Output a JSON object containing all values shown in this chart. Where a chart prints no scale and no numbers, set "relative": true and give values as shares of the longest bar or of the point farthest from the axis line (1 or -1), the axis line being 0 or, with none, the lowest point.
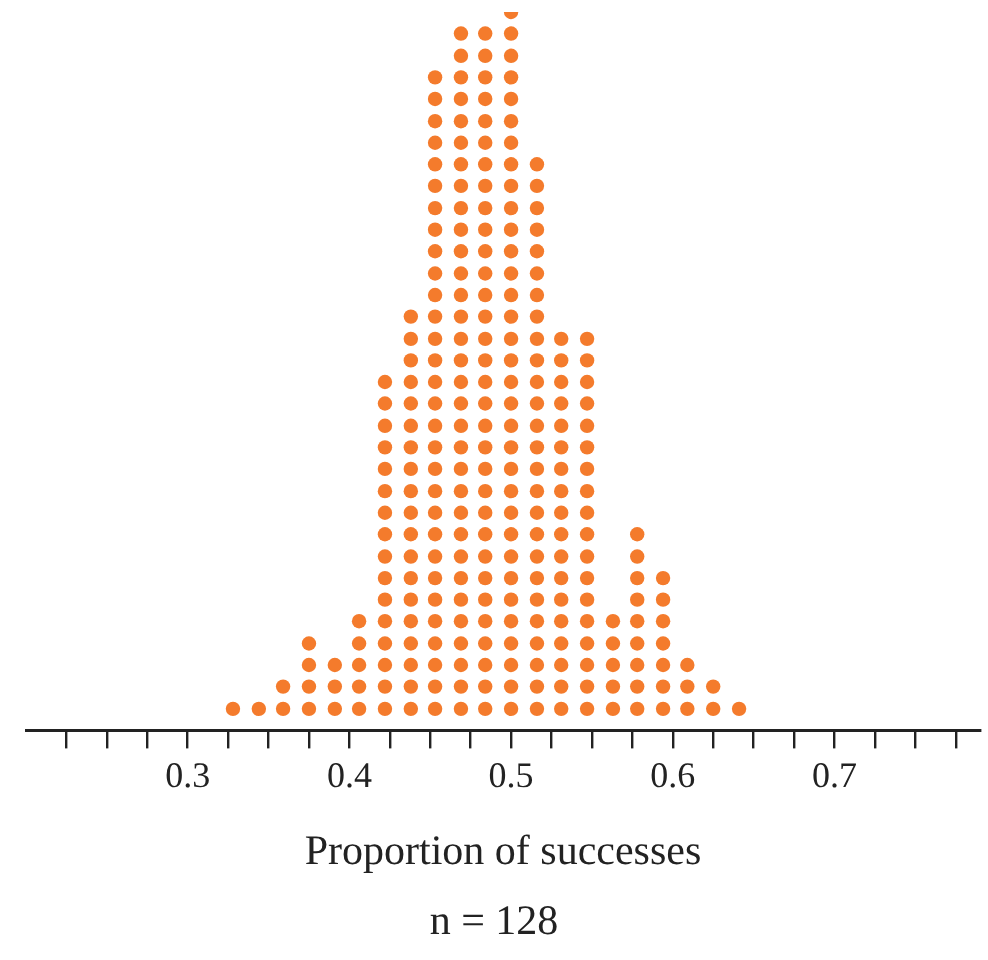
{
  "chart_data": {
    "type": "scatter",
    "relative": true,
    "xlabel": "Proportion of successes",
    "annotations": [
      "n = 128"
    ],
    "marker": "circle",
    "xlim": [
      0.2,
      0.79
    ],
    "xticks": [
      {
        "value": 0.225,
        "label": null
      },
      {
        "value": 0.25,
        "label": null
      },
      {
        "value": 0.275,
        "label": null
      },
      0.3,
      {
        "value": 0.325,
        "label": null
      },
      {
        "value": 0.35,
        "label": null
      },
      {
        "value": 0.375,
        "label": null
      },
      0.4,
      {
        "value": 0.425,
        "label": null
      },
      {
        "value": 0.45,
        "label": null
      },
      {
        "value": 0.475,
        "label": null
      },
      0.5,
      {
        "value": 0.525,
        "label": null
      },
      {
        "value": 0.55,
        "label": null
      },
      {
        "value": 0.575,
        "label": null
      },
      0.6,
      {
        "value": 0.625,
        "label": null
      },
      {
        "value": 0.65,
        "label": null
      },
      {
        "value": 0.675,
        "label": null
      },
      0.7,
      {
        "value": 0.725,
        "label": null
      },
      {
        "value": 0.75,
        "label": null
      },
      {
        "value": 0.775,
        "label": null
      }
    ],
    "series": [
      {
        "color": "#f47b2c",
        "x": [
          0.328,
          0.344,
          0.359,
          0.359,
          0.375,
          0.375,
          0.375,
          0.375,
          0.391,
          0.391,
          0.391,
          0.406,
          0.406,
          0.406,
          0.406,
          0.406,
          0.422,
          0.422,
          0.422,
          0.422,
          0.422,
          0.422,
          0.422,
          0.422,
          0.422,
          0.422,
          0.422,
          0.422,
          0.422,
          0.422,
          0.422,
          0.422,
          0.438,
          0.438,
          0.438,
          0.438,
          0.438,
          0.438,
          0.438,
          0.438,
          0.438,
          0.438,
          0.438,
          0.438,
          0.438,
          0.438,
          0.438,
          0.438,
          0.438,
          0.438,
          0.438,
          0.453,
          0.453,
          0.453,
          0.453,
          0.453,
          0.453,
          0.453,
          0.453,
          0.453,
          0.453,
          0.453,
          0.453,
          0.453,
          0.453,
          0.453,
          0.453,
          0.453,
          0.453,
          0.453,
          0.453,
          0.453,
          0.453,
          0.453,
          0.453,
          0.453,
          0.453,
          0.453,
          0.453,
          0.453,
          0.453,
          0.469,
          0.469,
          0.469,
          0.469,
          0.469,
          0.469,
          0.469,
          0.469,
          0.469,
          0.469,
          0.469,
          0.469,
          0.469,
          0.469,
          0.469,
          0.469,
          0.469,
          0.469,
          0.469,
          0.469,
          0.469,
          0.469,
          0.469,
          0.469,
          0.469,
          0.469,
          0.469,
          0.469,
          0.469,
          0.469,
          0.469,
          0.469,
          0.484,
          0.484,
          0.484,
          0.484,
          0.484,
          0.484,
          0.484,
          0.484,
          0.484,
          0.484,
          0.484,
          0.484,
          0.484,
          0.484,
          0.484,
          0.484,
          0.484,
          0.484,
          0.484,
          0.484,
          0.484,
          0.484,
          0.484,
          0.484,
          0.484,
          0.484,
          0.484,
          0.484,
          0.484,
          0.484,
          0.484,
          0.484,
          0.5,
          0.5,
          0.5,
          0.5,
          0.5,
          0.5,
          0.5,
          0.5,
          0.5,
          0.5,
          0.5,
          0.5,
          0.5,
          0.5,
          0.5,
          0.5,
          0.5,
          0.5,
          0.5,
          0.5,
          0.5,
          0.5,
          0.5,
          0.5,
          0.5,
          0.5,
          0.5,
          0.5,
          0.5,
          0.5,
          0.5,
          0.5,
          0.5,
          0.516,
          0.516,
          0.516,
          0.516,
          0.516,
          0.516,
          0.516,
          0.516,
          0.516,
          0.516,
          0.516,
          0.516,
          0.516,
          0.516,
          0.516,
          0.516,
          0.516,
          0.516,
          0.516,
          0.516,
          0.516,
          0.516,
          0.516,
          0.516,
          0.516,
          0.516,
          0.531,
          0.531,
          0.531,
          0.531,
          0.531,
          0.531,
          0.531,
          0.531,
          0.531,
          0.531,
          0.531,
          0.531,
          0.531,
          0.531,
          0.531,
          0.531,
          0.531,
          0.531,
          0.547,
          0.547,
          0.547,
          0.547,
          0.547,
          0.547,
          0.547,
          0.547,
          0.547,
          0.547,
          0.547,
          0.547,
          0.547,
          0.547,
          0.547,
          0.547,
          0.547,
          0.547,
          0.563,
          0.563,
          0.563,
          0.563,
          0.563,
          0.578,
          0.578,
          0.578,
          0.578,
          0.578,
          0.578,
          0.578,
          0.578,
          0.578,
          0.594,
          0.594,
          0.594,
          0.594,
          0.594,
          0.594,
          0.594,
          0.609,
          0.609,
          0.609,
          0.625,
          0.625,
          0.641
        ],
        "values": [
          0.03,
          0.03,
          0.03,
          0.061,
          0.03,
          0.061,
          0.091,
          0.121,
          0.03,
          0.061,
          0.091,
          0.03,
          0.061,
          0.091,
          0.121,
          0.152,
          0.03,
          0.061,
          0.091,
          0.121,
          0.152,
          0.182,
          0.212,
          0.242,
          0.273,
          0.303,
          0.333,
          0.364,
          0.394,
          0.424,
          0.455,
          0.485,
          0.03,
          0.061,
          0.091,
          0.121,
          0.152,
          0.182,
          0.212,
          0.242,
          0.273,
          0.303,
          0.333,
          0.364,
          0.394,
          0.424,
          0.455,
          0.485,
          0.515,
          0.545,
          0.576,
          0.03,
          0.061,
          0.091,
          0.121,
          0.152,
          0.182,
          0.212,
          0.242,
          0.273,
          0.303,
          0.333,
          0.364,
          0.394,
          0.424,
          0.455,
          0.485,
          0.515,
          0.545,
          0.576,
          0.606,
          0.636,
          0.667,
          0.697,
          0.727,
          0.758,
          0.788,
          0.818,
          0.848,
          0.879,
          0.909,
          0.03,
          0.061,
          0.091,
          0.121,
          0.152,
          0.182,
          0.212,
          0.242,
          0.273,
          0.303,
          0.333,
          0.364,
          0.394,
          0.424,
          0.455,
          0.485,
          0.515,
          0.545,
          0.576,
          0.606,
          0.636,
          0.667,
          0.697,
          0.727,
          0.758,
          0.788,
          0.818,
          0.848,
          0.879,
          0.909,
          0.939,
          0.97,
          0.03,
          0.061,
          0.091,
          0.121,
          0.152,
          0.182,
          0.212,
          0.242,
          0.273,
          0.303,
          0.333,
          0.364,
          0.394,
          0.424,
          0.455,
          0.485,
          0.515,
          0.545,
          0.576,
          0.606,
          0.636,
          0.667,
          0.697,
          0.727,
          0.758,
          0.788,
          0.818,
          0.848,
          0.879,
          0.909,
          0.939,
          0.97,
          0.03,
          0.061,
          0.091,
          0.121,
          0.152,
          0.182,
          0.212,
          0.242,
          0.273,
          0.303,
          0.333,
          0.364,
          0.394,
          0.424,
          0.455,
          0.485,
          0.515,
          0.545,
          0.576,
          0.606,
          0.636,
          0.667,
          0.697,
          0.727,
          0.758,
          0.788,
          0.818,
          0.848,
          0.879,
          0.909,
          0.939,
          0.97,
          1,
          0.03,
          0.061,
          0.091,
          0.121,
          0.152,
          0.182,
          0.212,
          0.242,
          0.273,
          0.303,
          0.333,
          0.364,
          0.394,
          0.424,
          0.455,
          0.485,
          0.515,
          0.545,
          0.576,
          0.606,
          0.636,
          0.667,
          0.697,
          0.727,
          0.758,
          0.788,
          0.03,
          0.061,
          0.091,
          0.121,
          0.152,
          0.182,
          0.212,
          0.242,
          0.273,
          0.303,
          0.333,
          0.364,
          0.394,
          0.424,
          0.455,
          0.485,
          0.515,
          0.545,
          0.03,
          0.061,
          0.091,
          0.121,
          0.152,
          0.182,
          0.212,
          0.242,
          0.273,
          0.303,
          0.333,
          0.364,
          0.394,
          0.424,
          0.455,
          0.485,
          0.515,
          0.545,
          0.03,
          0.061,
          0.091,
          0.121,
          0.152,
          0.03,
          0.061,
          0.091,
          0.121,
          0.152,
          0.182,
          0.212,
          0.242,
          0.273,
          0.03,
          0.061,
          0.091,
          0.121,
          0.152,
          0.182,
          0.212,
          0.03,
          0.061,
          0.091,
          0.03,
          0.061,
          0.03
        ]
      }
    ]
  }
}
